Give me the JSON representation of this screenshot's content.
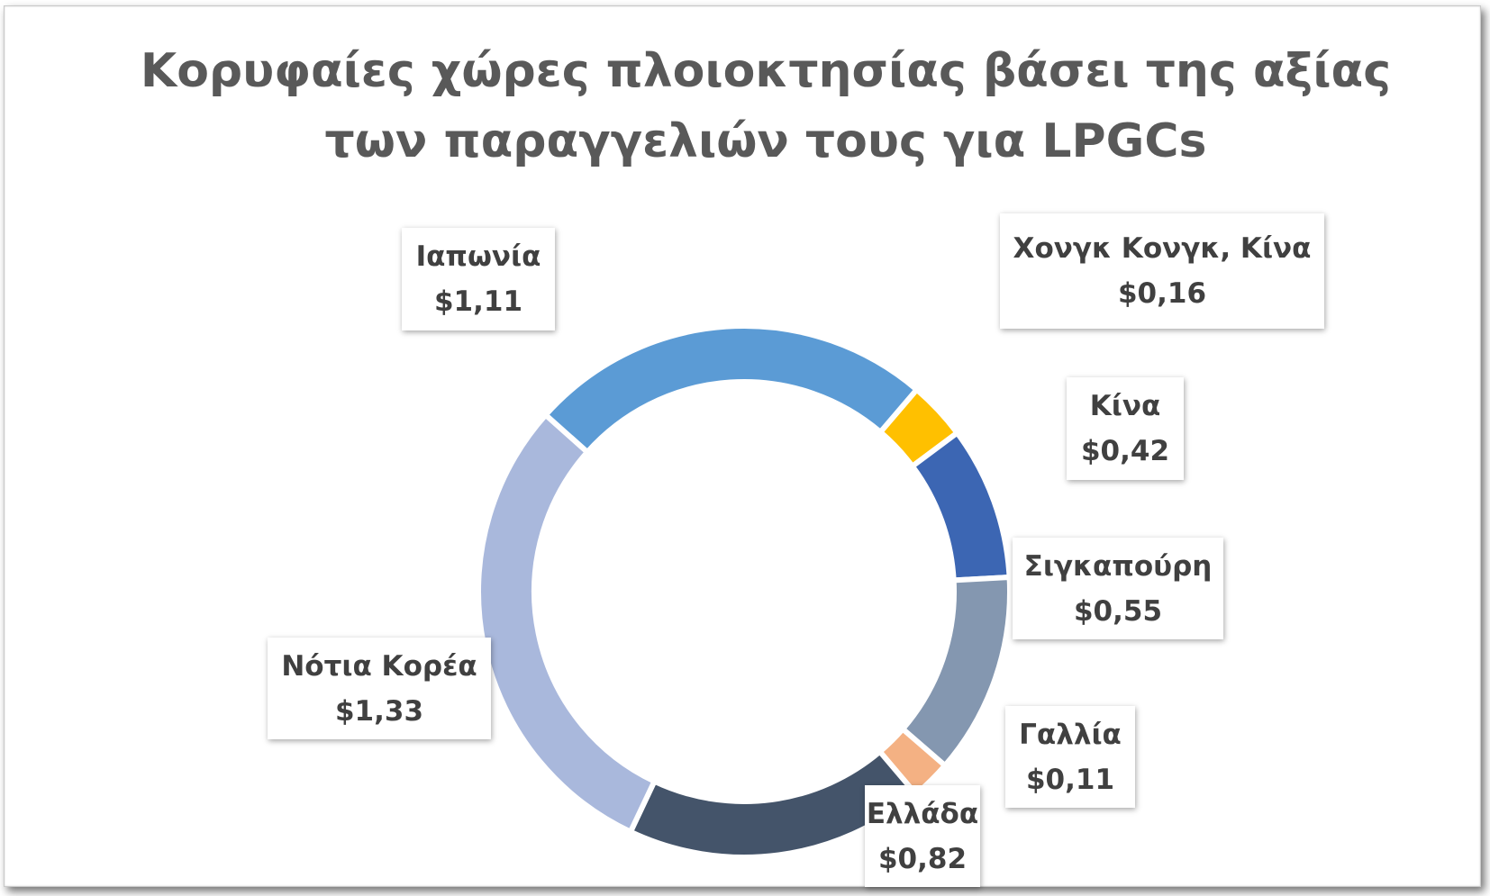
{
  "chart_data": {
    "type": "pie",
    "variant": "doughnut",
    "title": "Κορυφαίες χώρες πλοιοκτησίας βάσει της αξίας των παραγγελιών τους για LPGCs",
    "title_lines": [
      "Κορυφαίες χώρες πλοιοκτησίας βάσει της αξίας",
      "των παραγγελιών τους για LPGCs"
    ],
    "legend": "none",
    "slices": [
      {
        "label": "Χονγκ Κονγκ, Κίνα",
        "value": 0.16,
        "value_label": "$0,16",
        "color": "#FFC000"
      },
      {
        "label": "Κίνα",
        "value": 0.42,
        "value_label": "$0,42",
        "color": "#3C66B3"
      },
      {
        "label": "Σιγκαπούρη",
        "value": 0.55,
        "value_label": "$0,55",
        "color": "#8497B0"
      },
      {
        "label": "Γαλλία",
        "value": 0.11,
        "value_label": "$0,11",
        "color": "#F4B183"
      },
      {
        "label": "Ελλάδα",
        "value": 0.82,
        "value_label": "$0,82",
        "color": "#44546A"
      },
      {
        "label": "Νότια Κορέα",
        "value": 1.33,
        "value_label": "$1,33",
        "color": "#A9B8DC"
      },
      {
        "label": "Ιαπωνία",
        "value": 1.11,
        "value_label": "$1,11",
        "color": "#5B9BD5"
      }
    ]
  }
}
